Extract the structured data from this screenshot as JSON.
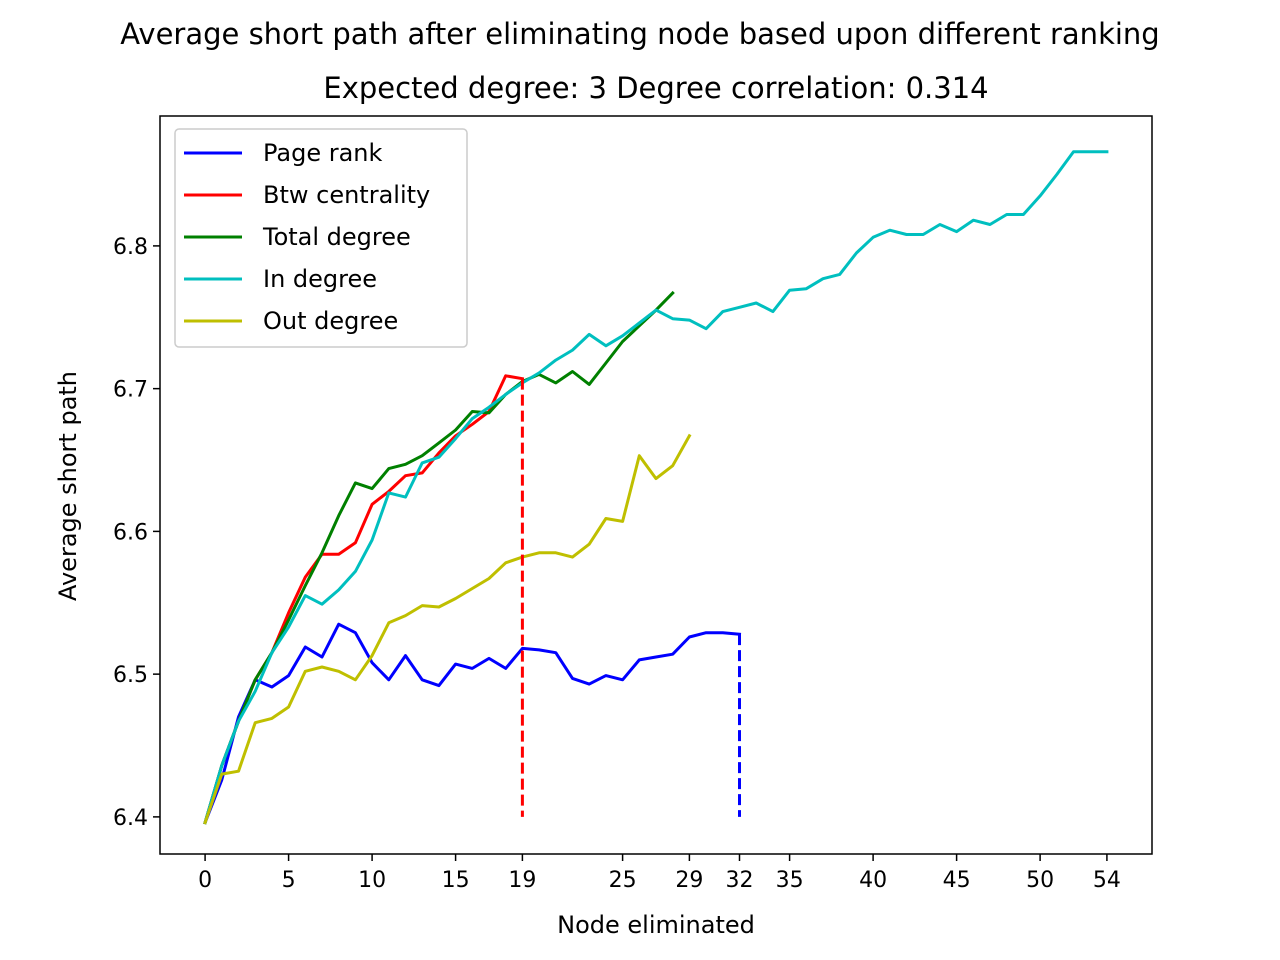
{
  "chart_data": {
    "type": "line",
    "title": "Average short path after eliminating node based upon different ranking",
    "subtitle": "Expected degree: 3  Degree correlation: 0.314",
    "xlabel": "Node eliminated",
    "ylabel": "Average short path",
    "xlim": [
      -2.7,
      56.7
    ],
    "ylim": [
      6.374,
      6.891
    ],
    "xticks": [
      0,
      5,
      10,
      15,
      19,
      25,
      29,
      32,
      35,
      40,
      45,
      50,
      54
    ],
    "yticks": [
      6.4,
      6.5,
      6.6,
      6.7,
      6.8
    ],
    "ytick_labels": [
      "6.4",
      "6.5",
      "6.6",
      "6.7",
      "6.8"
    ],
    "legend_position": "upper-left",
    "series": [
      {
        "name": "Page rank",
        "color": "#0000ff",
        "x": [
          0,
          1,
          2,
          3,
          4,
          5,
          6,
          7,
          8,
          9,
          10,
          11,
          12,
          13,
          14,
          15,
          16,
          17,
          18,
          19,
          20,
          21,
          22,
          23,
          24,
          25,
          26,
          27,
          28,
          29,
          30,
          31,
          32
        ],
        "values": [
          6.396,
          6.426,
          6.47,
          6.496,
          6.491,
          6.499,
          6.519,
          6.512,
          6.535,
          6.529,
          6.508,
          6.496,
          6.513,
          6.496,
          6.492,
          6.507,
          6.504,
          6.511,
          6.504,
          6.518,
          6.517,
          6.515,
          6.497,
          6.493,
          6.499,
          6.496,
          6.51,
          6.512,
          6.514,
          6.526,
          6.529,
          6.529,
          6.528
        ]
      },
      {
        "name": "Btw centrality",
        "color": "#ff0000",
        "x": [
          0,
          1,
          2,
          3,
          4,
          5,
          6,
          7,
          8,
          9,
          10,
          11,
          12,
          13,
          14,
          15,
          16,
          17,
          18,
          19
        ],
        "values": [
          6.396,
          6.436,
          6.467,
          6.496,
          6.515,
          6.543,
          6.568,
          6.584,
          6.584,
          6.592,
          6.619,
          6.628,
          6.639,
          6.641,
          6.655,
          6.667,
          6.675,
          6.684,
          6.709,
          6.707
        ]
      },
      {
        "name": "Total degree",
        "color": "#008000",
        "x": [
          0,
          1,
          2,
          3,
          4,
          5,
          6,
          7,
          8,
          9,
          10,
          11,
          12,
          13,
          14,
          15,
          16,
          17,
          18,
          19,
          20,
          21,
          22,
          23,
          24,
          25,
          26,
          27,
          28
        ],
        "values": [
          6.396,
          6.436,
          6.467,
          6.496,
          6.515,
          6.538,
          6.562,
          6.585,
          6.611,
          6.634,
          6.63,
          6.644,
          6.647,
          6.653,
          6.662,
          6.671,
          6.684,
          6.683,
          6.696,
          6.705,
          6.71,
          6.704,
          6.712,
          6.703,
          6.718,
          6.733,
          6.744,
          6.755,
          6.767
        ]
      },
      {
        "name": "In degree",
        "color": "#00bfbf",
        "x": [
          0,
          1,
          2,
          3,
          4,
          5,
          6,
          7,
          8,
          9,
          10,
          11,
          12,
          13,
          14,
          15,
          16,
          17,
          18,
          19,
          20,
          21,
          22,
          23,
          24,
          25,
          26,
          27,
          28,
          29,
          30,
          31,
          32,
          33,
          34,
          35,
          36,
          37,
          38,
          39,
          40,
          41,
          42,
          43,
          44,
          45,
          46,
          47,
          48,
          49,
          50,
          51,
          52,
          53,
          54
        ],
        "values": [
          6.396,
          6.436,
          6.467,
          6.488,
          6.515,
          6.533,
          6.555,
          6.549,
          6.559,
          6.572,
          6.594,
          6.627,
          6.624,
          6.648,
          6.652,
          6.665,
          6.679,
          6.687,
          6.696,
          6.704,
          6.711,
          6.72,
          6.727,
          6.738,
          6.73,
          6.737,
          6.746,
          6.755,
          6.749,
          6.748,
          6.742,
          6.754,
          6.757,
          6.76,
          6.754,
          6.769,
          6.77,
          6.777,
          6.78,
          6.795,
          6.806,
          6.811,
          6.808,
          6.808,
          6.815,
          6.81,
          6.818,
          6.815,
          6.822,
          6.822,
          6.835,
          6.85,
          6.866,
          6.866,
          6.866
        ]
      },
      {
        "name": "Out degree",
        "color": "#bfbf00",
        "x": [
          0,
          1,
          2,
          3,
          4,
          5,
          6,
          7,
          8,
          9,
          10,
          11,
          12,
          13,
          14,
          15,
          16,
          17,
          18,
          19,
          20,
          21,
          22,
          23,
          24,
          25,
          26,
          27,
          28,
          29
        ],
        "values": [
          6.396,
          6.43,
          6.432,
          6.466,
          6.469,
          6.477,
          6.502,
          6.505,
          6.502,
          6.496,
          6.513,
          6.536,
          6.541,
          6.548,
          6.547,
          6.553,
          6.56,
          6.567,
          6.578,
          6.582,
          6.585,
          6.585,
          6.582,
          6.591,
          6.609,
          6.607,
          6.653,
          6.637,
          6.646,
          6.667
        ]
      }
    ],
    "vertical_lines": [
      {
        "x": 19,
        "y_from": 6.4,
        "y_to": 6.707,
        "color": "#ff0000",
        "style": "dashed"
      },
      {
        "x": 32,
        "y_from": 6.4,
        "y_to": 6.528,
        "color": "#0000ff",
        "style": "dashed"
      }
    ]
  }
}
